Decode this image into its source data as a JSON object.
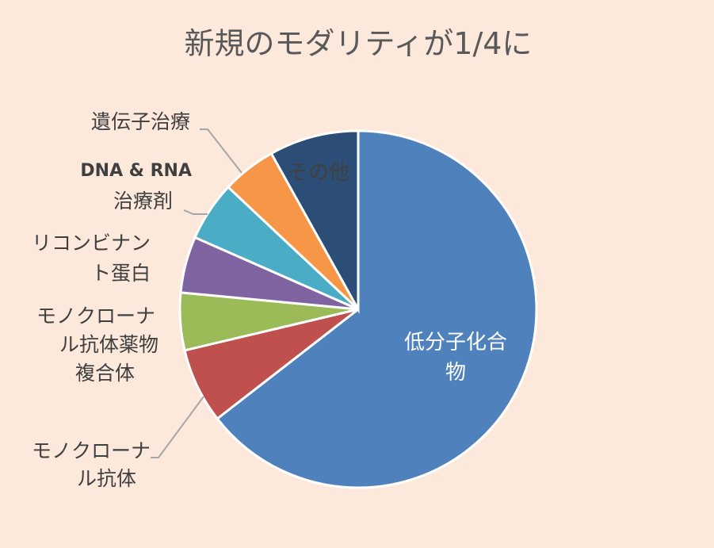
{
  "chart_data": {
    "type": "pie",
    "title": "新規のモダリティが1/4に",
    "slices": [
      {
        "label_lines": [
          "低分子化合",
          "物"
        ],
        "value": 64.5,
        "color": "#4f81bd",
        "label_style": "inside"
      },
      {
        "label_lines": [
          "モノクローナ",
          "ル抗体"
        ],
        "value": 6.8,
        "color": "#c0504d",
        "label_style": "outside"
      },
      {
        "label_lines": [
          "モノクローナ",
          "ル抗体薬物",
          "複合体"
        ],
        "value": 5.2,
        "color": "#9bbb59",
        "label_style": "outside"
      },
      {
        "label_lines": [
          "リコンビナン",
          "ト蛋白"
        ],
        "value": 5.1,
        "color": "#8064a2",
        "label_style": "outside"
      },
      {
        "label_lines": [
          "DNA & RNA",
          "治療剤"
        ],
        "value": 5.4,
        "color": "#4bacc6",
        "label_style": "outside"
      },
      {
        "label_lines": [
          "遺伝子治療"
        ],
        "value": 4.9,
        "color": "#f79646",
        "label_style": "outside"
      },
      {
        "label_lines": [
          "その他"
        ],
        "value": 8.1,
        "color": "#2c4d75",
        "label_style": "inside-dark"
      }
    ],
    "legend": "none"
  }
}
